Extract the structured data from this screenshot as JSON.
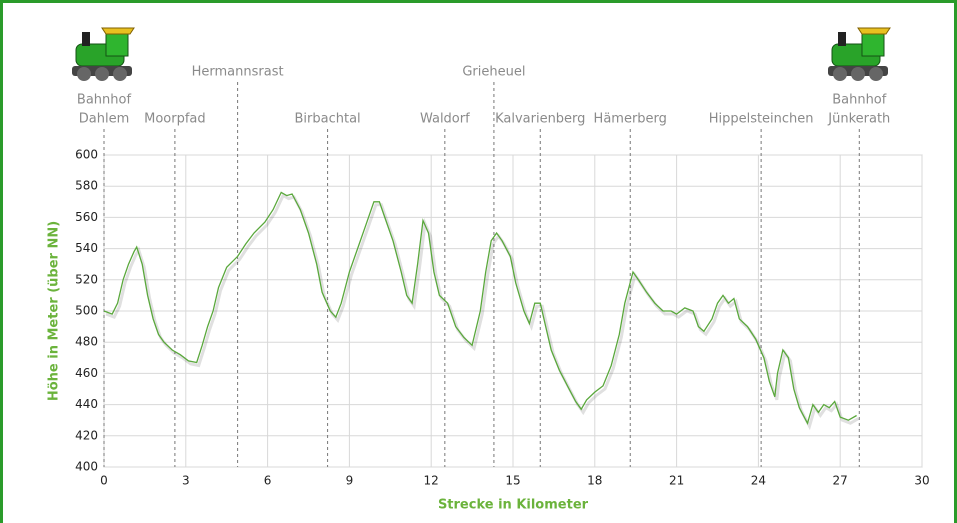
{
  "chart_data": {
    "type": "line",
    "xlabel": "Strecke in Kilometer",
    "ylabel": "Höhe in Meter (über NN)",
    "color": "#5aa83c",
    "grid": true,
    "xlim": [
      0,
      30
    ],
    "xticks": [
      0,
      3,
      6,
      9,
      12,
      15,
      18,
      21,
      24,
      27,
      30
    ],
    "ylim": [
      400,
      600
    ],
    "yticks": [
      400,
      420,
      440,
      460,
      480,
      500,
      520,
      540,
      560,
      580,
      600
    ],
    "x": [
      0,
      0.3,
      0.5,
      0.7,
      0.9,
      1.1,
      1.2,
      1.4,
      1.6,
      1.8,
      2.0,
      2.2,
      2.5,
      2.8,
      3.1,
      3.4,
      3.6,
      3.8,
      4.0,
      4.2,
      4.5,
      4.9,
      5.2,
      5.5,
      5.9,
      6.2,
      6.5,
      6.7,
      6.9,
      7.2,
      7.5,
      7.8,
      8.0,
      8.3,
      8.5,
      8.7,
      9.0,
      9.3,
      9.6,
      9.9,
      10.1,
      10.3,
      10.6,
      10.9,
      11.1,
      11.3,
      11.5,
      11.7,
      11.9,
      12.1,
      12.3,
      12.6,
      12.9,
      13.2,
      13.5,
      13.8,
      14.0,
      14.2,
      14.4,
      14.6,
      14.9,
      15.1,
      15.4,
      15.6,
      15.8,
      16.0,
      16.2,
      16.4,
      16.7,
      17.0,
      17.3,
      17.5,
      17.7,
      18.0,
      18.3,
      18.6,
      18.9,
      19.1,
      19.4,
      19.6,
      19.9,
      20.2,
      20.5,
      20.8,
      21.0,
      21.3,
      21.6,
      21.8,
      22.0,
      22.3,
      22.5,
      22.7,
      22.9,
      23.1,
      23.3,
      23.6,
      23.9,
      24.2,
      24.4,
      24.6,
      24.7,
      24.9,
      25.1,
      25.3,
      25.5,
      25.8,
      26.0,
      26.2,
      26.4,
      26.6,
      26.8,
      27.0,
      27.3,
      27.6
    ],
    "values": [
      500,
      498,
      505,
      520,
      530,
      538,
      541,
      530,
      510,
      495,
      485,
      480,
      475,
      472,
      468,
      467,
      478,
      490,
      500,
      515,
      528,
      535,
      543,
      550,
      557,
      565,
      576,
      574,
      575,
      565,
      550,
      530,
      512,
      500,
      496,
      505,
      525,
      540,
      555,
      570,
      570,
      560,
      545,
      525,
      510,
      505,
      530,
      558,
      550,
      525,
      510,
      505,
      490,
      483,
      478,
      500,
      525,
      545,
      550,
      545,
      535,
      518,
      500,
      492,
      505,
      505,
      490,
      475,
      462,
      452,
      442,
      437,
      443,
      448,
      452,
      465,
      485,
      505,
      525,
      520,
      512,
      505,
      500,
      500,
      498,
      502,
      500,
      490,
      487,
      495,
      505,
      510,
      505,
      508,
      495,
      490,
      482,
      470,
      455,
      445,
      460,
      475,
      470,
      450,
      438,
      428,
      440,
      435,
      440,
      438,
      442,
      432,
      430,
      433
    ],
    "annotations": [
      {
        "label": [
          "Bahnhof",
          "Dahlem"
        ],
        "x": 0
      },
      {
        "label": [
          "Moorpfad"
        ],
        "x": 2.6
      },
      {
        "label": [
          "Hermannsrast"
        ],
        "x": 4.9
      },
      {
        "label": [
          "Birbachtal"
        ],
        "x": 8.2
      },
      {
        "label": [
          "Waldorf"
        ],
        "x": 12.5
      },
      {
        "label": [
          "Grieheuel"
        ],
        "x": 14.3
      },
      {
        "label": [
          "Kalvarienberg"
        ],
        "x": 16.0
      },
      {
        "label": [
          "Hämerberg"
        ],
        "x": 19.3
      },
      {
        "label": [
          "Hippelsteinchen"
        ],
        "x": 24.1
      },
      {
        "label": [
          "Bahnhof",
          "Jünkerath"
        ],
        "x": 27.7
      }
    ]
  }
}
